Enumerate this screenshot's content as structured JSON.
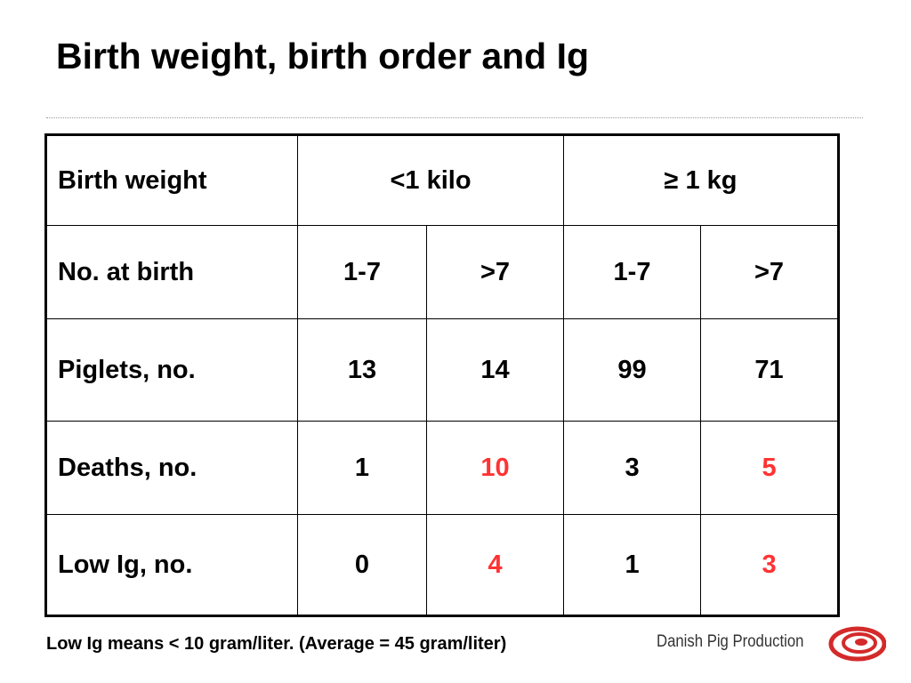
{
  "header": {
    "title": "Birth weight, birth order and Ig"
  },
  "table": {
    "groups": {
      "label": "Birth weight",
      "columns": [
        "<1 kilo",
        "≥  1 kg"
      ]
    },
    "subgroups": {
      "label": "No. at birth",
      "columns": [
        "1-7",
        ">7",
        "1-7",
        ">7"
      ]
    },
    "rows": [
      {
        "label": "Piglets, no.",
        "values": [
          13,
          14,
          99,
          71
        ],
        "colors": [
          "#000000",
          "#000000",
          "#000000",
          "#000000"
        ]
      },
      {
        "label": "Deaths, no.",
        "values": [
          1,
          10,
          3,
          5
        ],
        "colors": [
          "#000000",
          "#ff3333",
          "#000000",
          "#ff3333"
        ]
      },
      {
        "label": "Low Ig, no.",
        "values": [
          0,
          4,
          1,
          3
        ],
        "colors": [
          "#000000",
          "#ff3333",
          "#000000",
          "#ff3333"
        ]
      }
    ]
  },
  "footnote": "Low Ig means < 10 gram/liter. (Average = 45 gram/liter)",
  "logo": {
    "text": "Danish Pig Production"
  }
}
